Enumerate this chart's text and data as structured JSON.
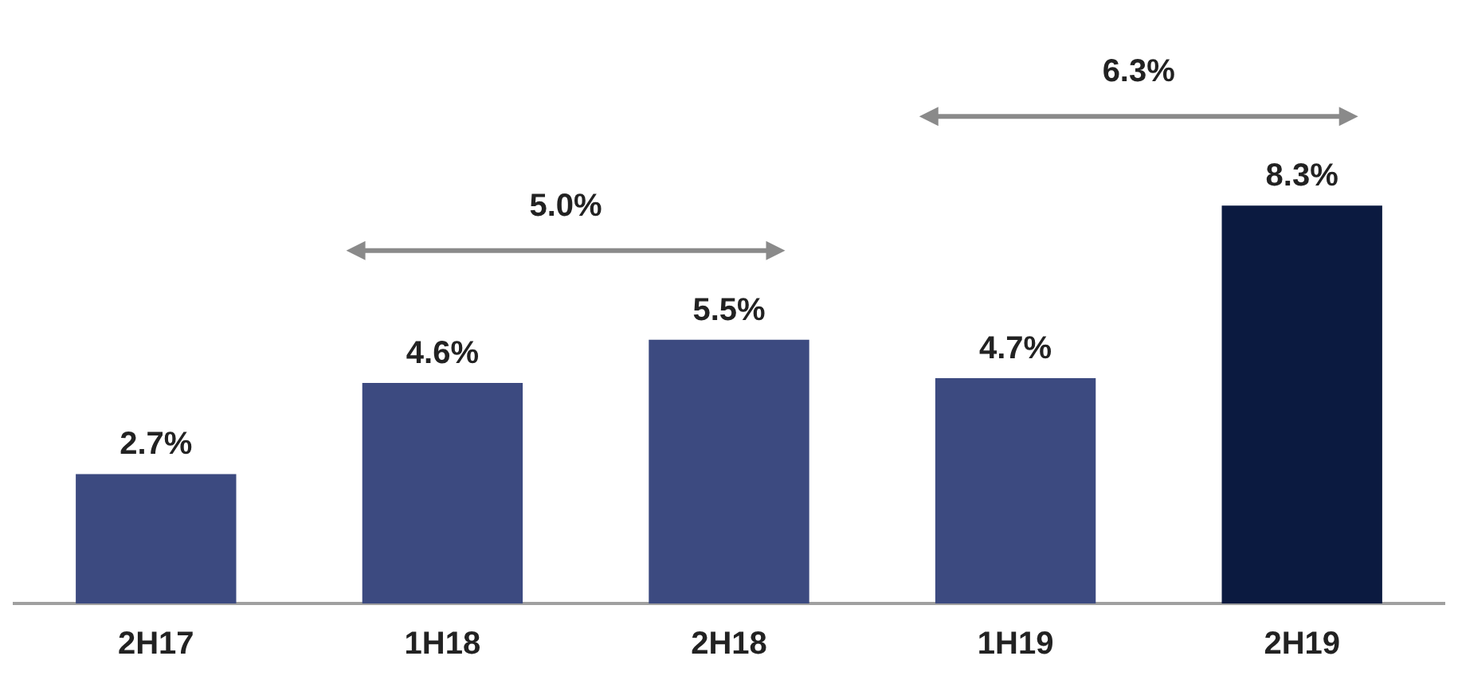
{
  "chart_data": {
    "type": "bar",
    "categories": [
      "2H17",
      "1H18",
      "2H18",
      "1H19",
      "2H19"
    ],
    "values": [
      2.7,
      4.6,
      5.5,
      4.7,
      8.3
    ],
    "colors": [
      "#3c4a80",
      "#3c4a80",
      "#3c4a80",
      "#3c4a80",
      "#0b1a40"
    ],
    "value_labels": [
      "2.7%",
      "4.6%",
      "5.5%",
      "4.7%",
      "8.3%"
    ],
    "annotations": [
      "5.0%",
      "6.3%"
    ],
    "grid": false,
    "legend": false
  }
}
